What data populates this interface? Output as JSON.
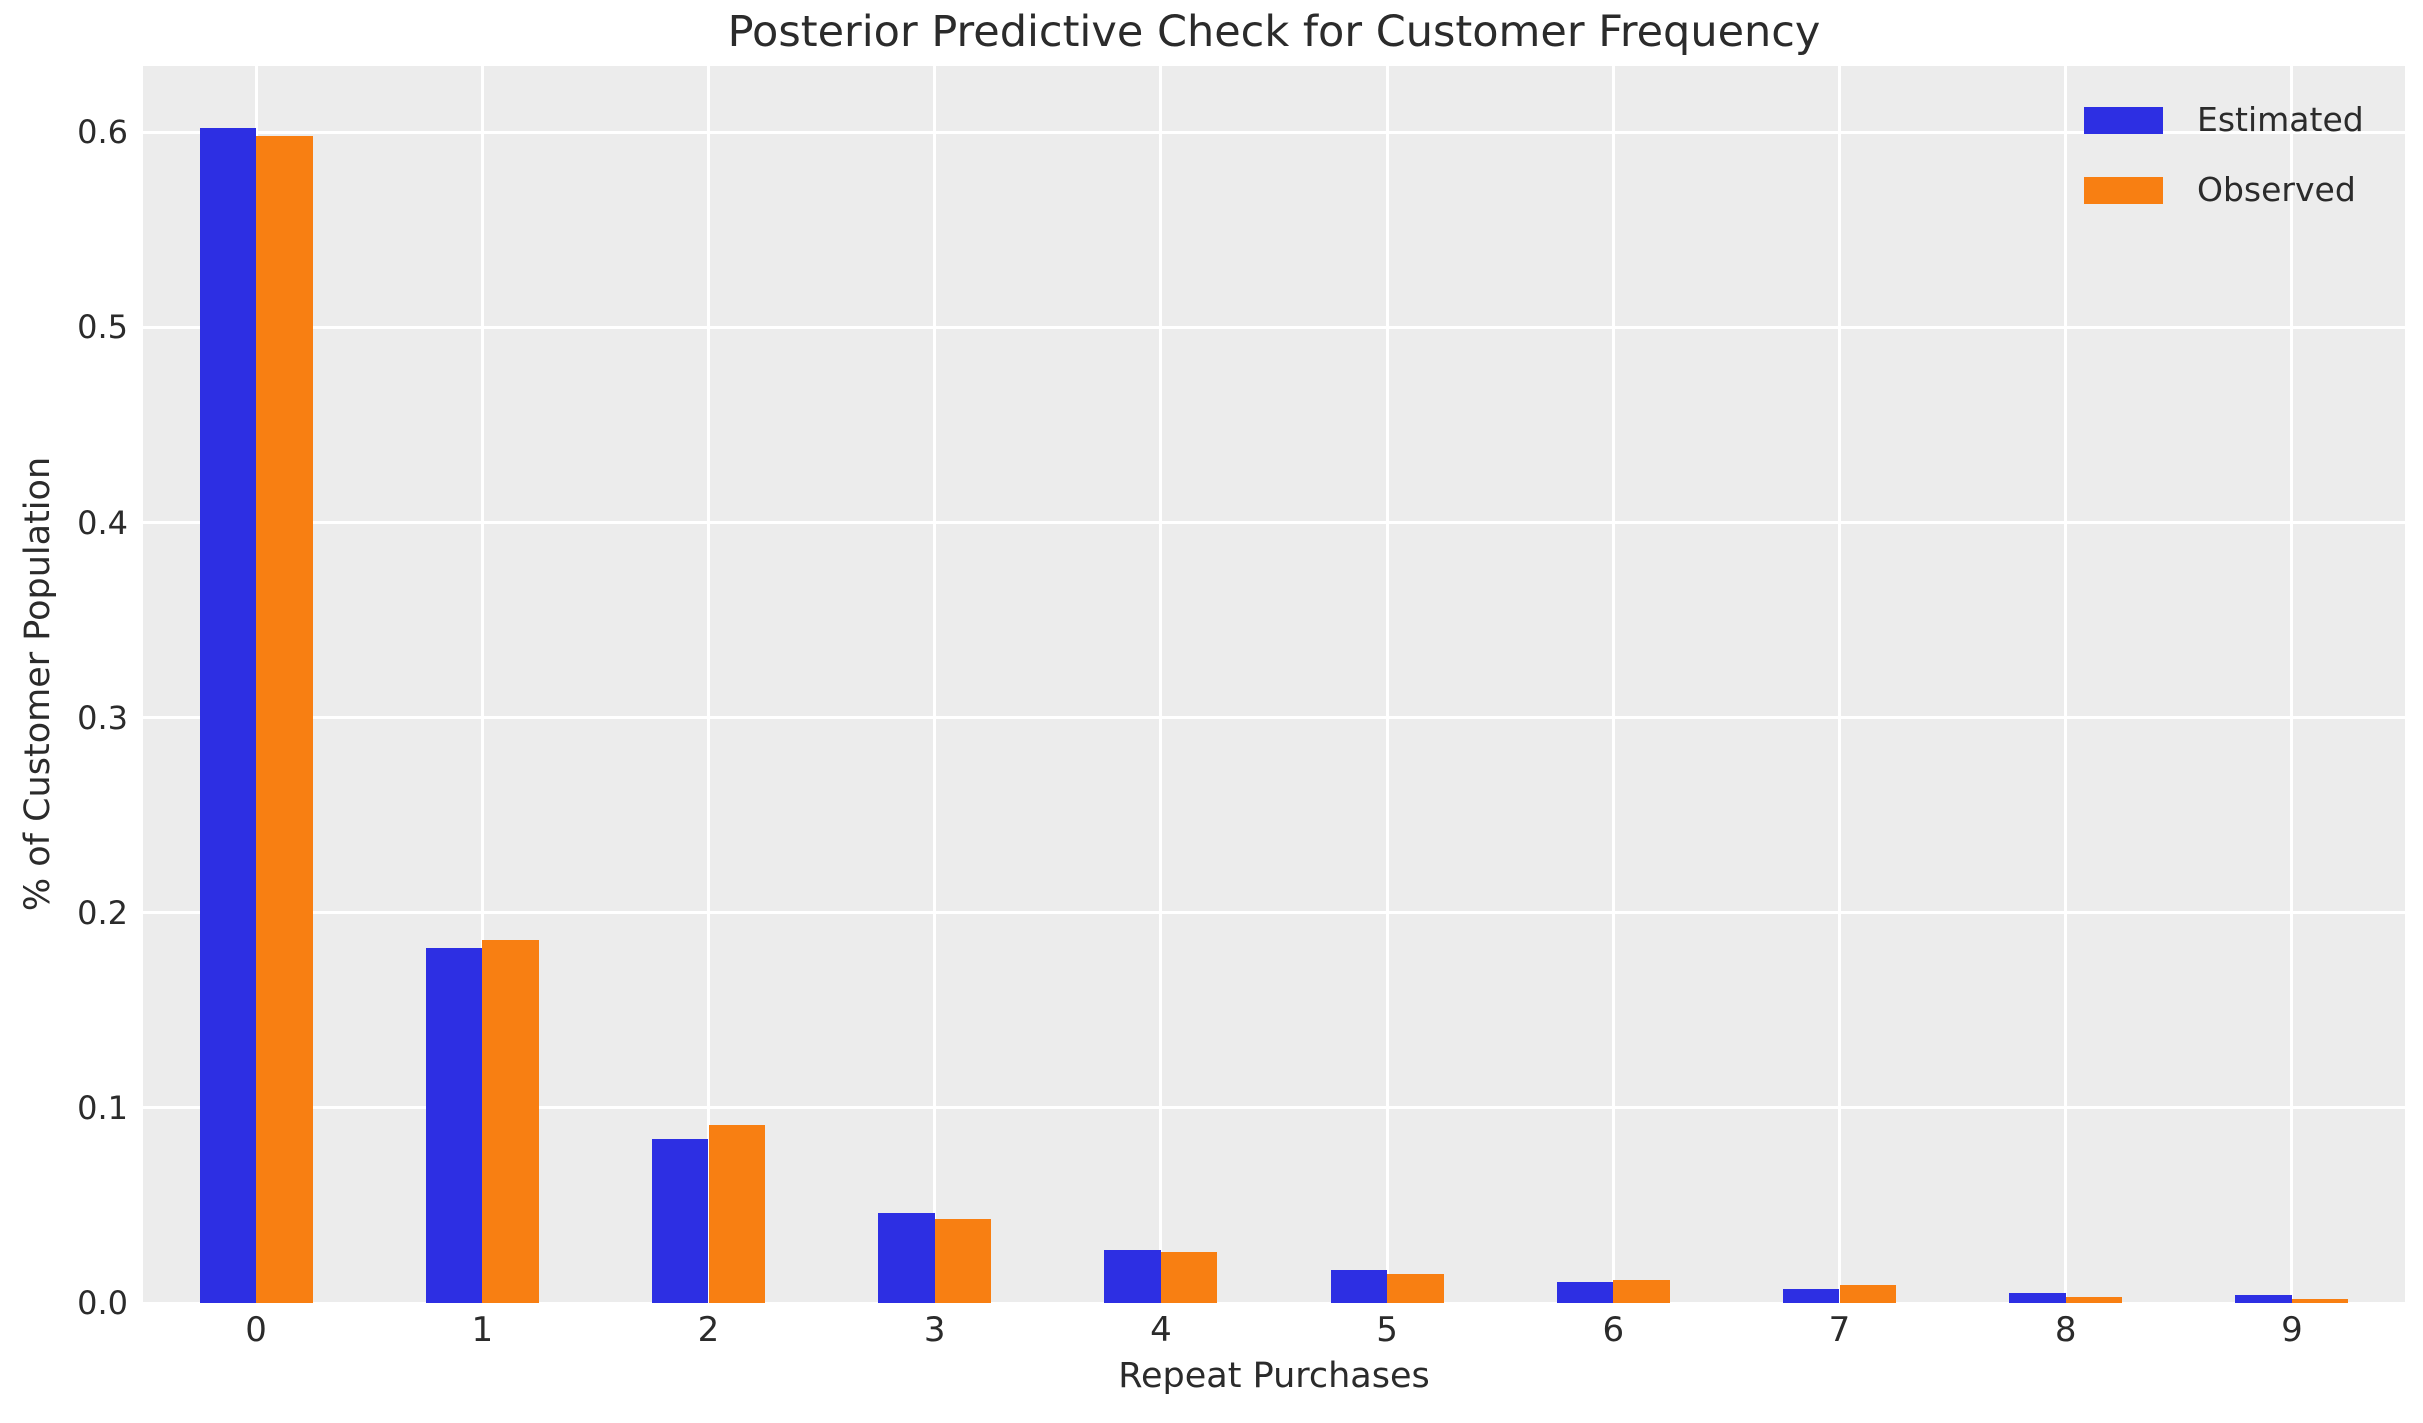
{
  "chart_data": {
    "type": "bar",
    "title": "Posterior Predictive Check for Customer Frequency",
    "xlabel": "Repeat Purchases",
    "ylabel": "% of Customer Population",
    "categories": [
      "0",
      "1",
      "2",
      "3",
      "4",
      "5",
      "6",
      "7",
      "8",
      "9"
    ],
    "series": [
      {
        "name": "Estimated",
        "color": "#2d2fe3",
        "values": [
          0.602,
          0.182,
          0.084,
          0.046,
          0.027,
          0.017,
          0.011,
          0.007,
          0.005,
          0.004
        ]
      },
      {
        "name": "Observed",
        "color": "#f87f12",
        "values": [
          0.598,
          0.186,
          0.091,
          0.043,
          0.026,
          0.015,
          0.012,
          0.009,
          0.003,
          0.002
        ]
      }
    ],
    "ylim": [
      0,
      0.634
    ],
    "yticks": [
      0.0,
      0.1,
      0.2,
      0.3,
      0.4,
      0.5,
      0.6
    ],
    "ytick_labels": [
      "0.0",
      "0.1",
      "0.2",
      "0.3",
      "0.4",
      "0.5",
      "0.6"
    ],
    "grid": true,
    "grid_color": "#ffffff",
    "plot_background": "#ececec",
    "figure_background": "#ffffff",
    "text_color": "#2b2b2b",
    "legend_position": "upper right"
  }
}
